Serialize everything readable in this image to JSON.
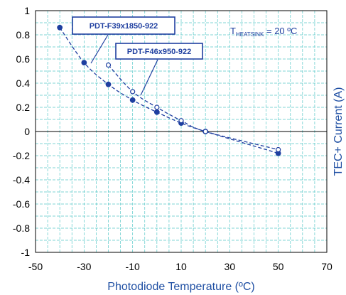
{
  "chart_data": {
    "type": "line",
    "xlabel": "Photodiode Temperature (ºC)",
    "ylabel": "TEC+ Current (A)",
    "xlim": [
      -50,
      70
    ],
    "ylim": [
      -1,
      1
    ],
    "xticks": [
      -50,
      -30,
      -10,
      10,
      30,
      50,
      70
    ],
    "yticks": [
      1,
      0.8,
      0.6,
      0.4,
      0.2,
      0,
      -0.2,
      -0.4,
      -0.6,
      -0.8,
      -1
    ],
    "xtick_labels": [
      "-50",
      "-30",
      "-10",
      "10",
      "30",
      "50",
      "70"
    ],
    "ytick_labels": [
      "1",
      "0.8",
      "0.6",
      "0.4",
      "0.2",
      "0",
      "-0.2",
      "-0.4",
      "-0.6",
      "-0.8",
      "-1"
    ],
    "grid": true,
    "series": [
      {
        "name": "PDT-F39x1850-922",
        "marker": "filled-circle",
        "line": "dashed",
        "color": "#1f3fa0",
        "x": [
          -40,
          -30,
          -20,
          -10,
          0,
          10,
          20,
          50
        ],
        "y": [
          0.86,
          0.57,
          0.39,
          0.26,
          0.16,
          0.07,
          0.0,
          -0.18
        ]
      },
      {
        "name": "PDT-F46x950-922",
        "marker": "open-circle",
        "line": "dashed",
        "color": "#1f3fa0",
        "x": [
          -20,
          -10,
          0,
          10,
          20,
          50
        ],
        "y": [
          0.55,
          0.33,
          0.2,
          0.09,
          0.0,
          -0.15
        ]
      }
    ],
    "annotation": {
      "prefix": "T",
      "subscript": "HEATSINK",
      "suffix": " = 20 ºC"
    },
    "colors": {
      "grid": "#58c8c8",
      "series": "#1f3fa0",
      "axis_title": "#1f4fa3"
    }
  }
}
